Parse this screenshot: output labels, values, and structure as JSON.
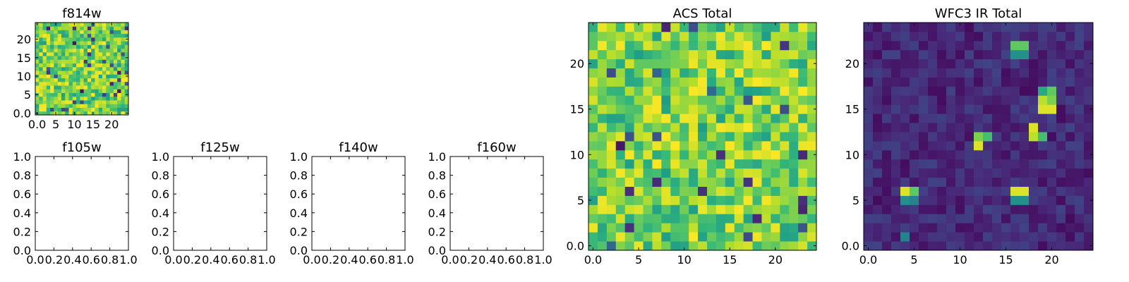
{
  "chart_data": [
    {
      "type": "heatmap",
      "title": "f814w",
      "shape": [
        25,
        25
      ],
      "xlim": [
        -0.5,
        24.5
      ],
      "ylim": [
        -0.5,
        24.5
      ],
      "xticks": [
        0,
        5,
        10,
        15,
        20
      ],
      "yticks": [
        0,
        5,
        10,
        15,
        20
      ],
      "colormap": "viridis",
      "grid": false,
      "field": "noise"
    },
    {
      "type": "empty",
      "title": "f105w",
      "xlim": [
        0,
        1
      ],
      "ylim": [
        0,
        1
      ],
      "xticks": [
        0.0,
        0.2,
        0.4,
        0.6,
        0.8,
        1.0
      ],
      "yticks": [
        0.0,
        0.2,
        0.4,
        0.6,
        0.8,
        1.0
      ]
    },
    {
      "type": "empty",
      "title": "f125w",
      "xlim": [
        0,
        1
      ],
      "ylim": [
        0,
        1
      ],
      "xticks": [
        0.0,
        0.2,
        0.4,
        0.6,
        0.8,
        1.0
      ],
      "yticks": [
        0.0,
        0.2,
        0.4,
        0.6,
        0.8,
        1.0
      ]
    },
    {
      "type": "empty",
      "title": "f140w",
      "xlim": [
        0,
        1
      ],
      "ylim": [
        0,
        1
      ],
      "xticks": [
        0.0,
        0.2,
        0.4,
        0.6,
        0.8,
        1.0
      ],
      "yticks": [
        0.0,
        0.2,
        0.4,
        0.6,
        0.8,
        1.0
      ]
    },
    {
      "type": "empty",
      "title": "f160w",
      "xlim": [
        0,
        1
      ],
      "ylim": [
        0,
        1
      ],
      "xticks": [
        0.0,
        0.2,
        0.4,
        0.6,
        0.8,
        1.0
      ],
      "yticks": [
        0.0,
        0.2,
        0.4,
        0.6,
        0.8,
        1.0
      ]
    },
    {
      "type": "heatmap",
      "title": "ACS Total",
      "shape": [
        25,
        25
      ],
      "xlim": [
        -0.5,
        24.5
      ],
      "ylim": [
        -0.5,
        24.5
      ],
      "xticks": [
        0,
        5,
        10,
        15,
        20
      ],
      "yticks": [
        0,
        5,
        10,
        15,
        20
      ],
      "colormap": "viridis",
      "grid": false,
      "field": "noise"
    },
    {
      "type": "heatmap",
      "title": "WFC3 IR Total",
      "shape": [
        25,
        25
      ],
      "xlim": [
        -0.5,
        24.5
      ],
      "ylim": [
        -0.5,
        24.5
      ],
      "xticks": [
        0,
        5,
        10,
        15,
        20
      ],
      "yticks": [
        0,
        5,
        10,
        15,
        20
      ],
      "colormap": "viridis",
      "grid": false,
      "field": "sources",
      "sources": [
        {
          "x": 4,
          "y": 1,
          "value": 0.45
        },
        {
          "x": 4,
          "y": 6,
          "value": 0.95
        },
        {
          "x": 5,
          "y": 6,
          "value": 0.75
        },
        {
          "x": 4,
          "y": 5,
          "value": 0.5
        },
        {
          "x": 5,
          "y": 5,
          "value": 0.45
        },
        {
          "x": 16,
          "y": 6,
          "value": 0.95
        },
        {
          "x": 17,
          "y": 6,
          "value": 0.95
        },
        {
          "x": 16,
          "y": 5,
          "value": 0.5
        },
        {
          "x": 17,
          "y": 5,
          "value": 0.5
        },
        {
          "x": 12,
          "y": 12,
          "value": 0.8
        },
        {
          "x": 13,
          "y": 12,
          "value": 0.7
        },
        {
          "x": 12,
          "y": 11,
          "value": 0.95
        },
        {
          "x": 18,
          "y": 13,
          "value": 0.95
        },
        {
          "x": 18,
          "y": 12,
          "value": 0.9
        },
        {
          "x": 19,
          "y": 12,
          "value": 0.7
        },
        {
          "x": 16,
          "y": 22,
          "value": 0.75
        },
        {
          "x": 17,
          "y": 22,
          "value": 0.75
        },
        {
          "x": 16,
          "y": 21,
          "value": 0.5
        },
        {
          "x": 17,
          "y": 21,
          "value": 0.5
        },
        {
          "x": 19,
          "y": 17,
          "value": 0.6
        },
        {
          "x": 20,
          "y": 17,
          "value": 0.75
        },
        {
          "x": 19,
          "y": 16,
          "value": 0.9
        },
        {
          "x": 20,
          "y": 16,
          "value": 0.8
        },
        {
          "x": 19,
          "y": 15,
          "value": 0.95
        },
        {
          "x": 20,
          "y": 15,
          "value": 0.95
        }
      ]
    }
  ]
}
